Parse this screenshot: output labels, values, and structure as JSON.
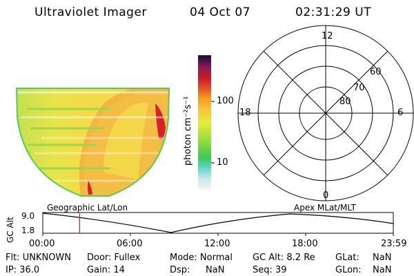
{
  "header": {
    "instrument": "Ultraviolet Imager",
    "date": "04 Oct 07",
    "time": "02:31:29 UT"
  },
  "colorbar": {
    "unit_label": "photon cm⁻²s⁻¹",
    "ticks": [
      "100",
      "10"
    ]
  },
  "polar_plot": {
    "mlt_labels": [
      "12",
      "18",
      "6",
      "0"
    ],
    "mlat_labels": [
      "60",
      "70",
      "80"
    ]
  },
  "panel_labels": {
    "left": "Geographic Lat/Lon",
    "right": "Apex MLat/MLT"
  },
  "altitude_plot": {
    "axis_title": "GC Alt",
    "y_ticks": [
      "9.0",
      "1.8"
    ],
    "x_ticks": [
      "00:00",
      "06:00",
      "12:00",
      "18:00",
      "23:59"
    ],
    "marker_time_hours": 2.525
  },
  "status": {
    "flt": "Flt: UNKNOWN",
    "ip": "IP: 36.0",
    "door": "Door: Fullex",
    "gain": "Gain: 14",
    "mode": "Mode: Normal",
    "dsp": "Dsp:",
    "dsp_value": "NaN",
    "gc_alt": "GC Alt: 8.2 Re",
    "seq": "Seq: 39",
    "glat": "GLat:",
    "glat_value": "NaN",
    "glon": "GLon:",
    "glon_value": "NaN"
  },
  "colors": {
    "background": "#ffffff",
    "image_yellow": "#f2e24a",
    "image_orange": "#f0a030",
    "image_red": "#d8202a",
    "image_green_edge": "#4fd04f",
    "marker_red": "#e02020"
  }
}
